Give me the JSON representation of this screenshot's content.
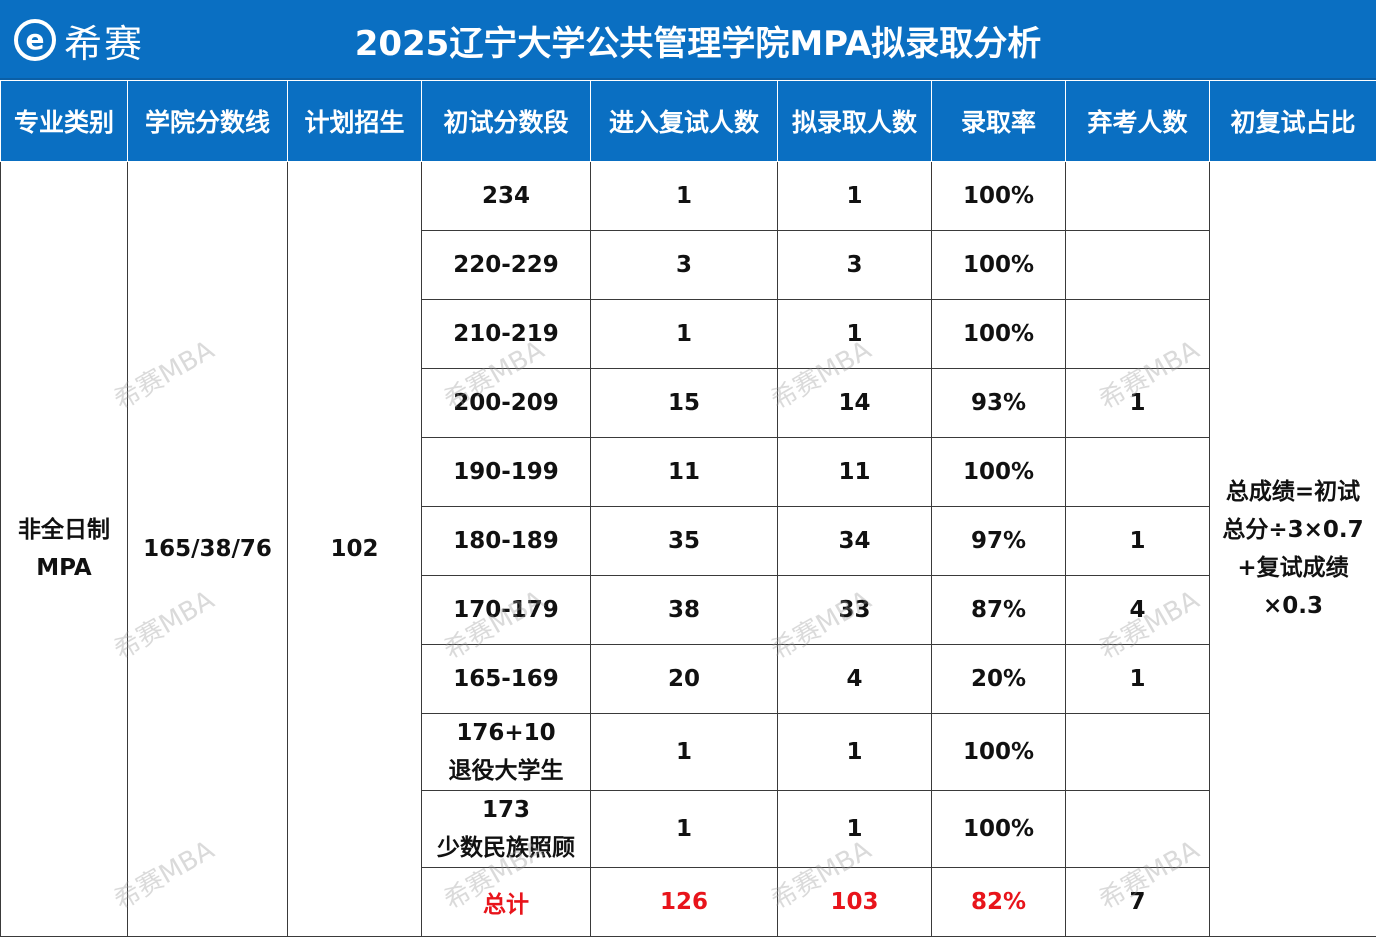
{
  "header": {
    "logo_mark": "e",
    "logo_text": "希赛",
    "title": "2025辽宁大学公共管理学院MPA拟录取分析"
  },
  "table": {
    "columns": [
      "专业类别",
      "学院分数线",
      "计划招生",
      "初试分数段",
      "进入复试人数",
      "拟录取人数",
      "录取率",
      "弃考人数",
      "初复试占比"
    ],
    "major": [
      "非全日制",
      "MPA"
    ],
    "cutoff": "165/38/76",
    "plan": "102",
    "formula": [
      "总成绩=初试",
      "总分÷3×0.7",
      "+复试成绩",
      "×0.3"
    ],
    "rows": [
      {
        "range": [
          "234"
        ],
        "retest": "1",
        "admitted": "1",
        "rate": "100%",
        "dropped": ""
      },
      {
        "range": [
          "220-229"
        ],
        "retest": "3",
        "admitted": "3",
        "rate": "100%",
        "dropped": ""
      },
      {
        "range": [
          "210-219"
        ],
        "retest": "1",
        "admitted": "1",
        "rate": "100%",
        "dropped": ""
      },
      {
        "range": [
          "200-209"
        ],
        "retest": "15",
        "admitted": "14",
        "rate": "93%",
        "dropped": "1"
      },
      {
        "range": [
          "190-199"
        ],
        "retest": "11",
        "admitted": "11",
        "rate": "100%",
        "dropped": ""
      },
      {
        "range": [
          "180-189"
        ],
        "retest": "35",
        "admitted": "34",
        "rate": "97%",
        "dropped": "1"
      },
      {
        "range": [
          "170-179"
        ],
        "retest": "38",
        "admitted": "33",
        "rate": "87%",
        "dropped": "4"
      },
      {
        "range": [
          "165-169"
        ],
        "retest": "20",
        "admitted": "4",
        "rate": "20%",
        "dropped": "1"
      },
      {
        "range": [
          "176+10",
          "退役大学生"
        ],
        "retest": "1",
        "admitted": "1",
        "rate": "100%",
        "dropped": ""
      },
      {
        "range": [
          "173",
          "少数民族照顾"
        ],
        "retest": "1",
        "admitted": "1",
        "rate": "100%",
        "dropped": ""
      }
    ],
    "total": {
      "label": "总计",
      "retest": "126",
      "admitted": "103",
      "rate": "82%",
      "dropped": "7"
    }
  },
  "watermark": "希赛MBA",
  "colors": {
    "header_bg": "#0a6fc2",
    "total_text": "#e8141b",
    "border": "#3a3a3a"
  }
}
